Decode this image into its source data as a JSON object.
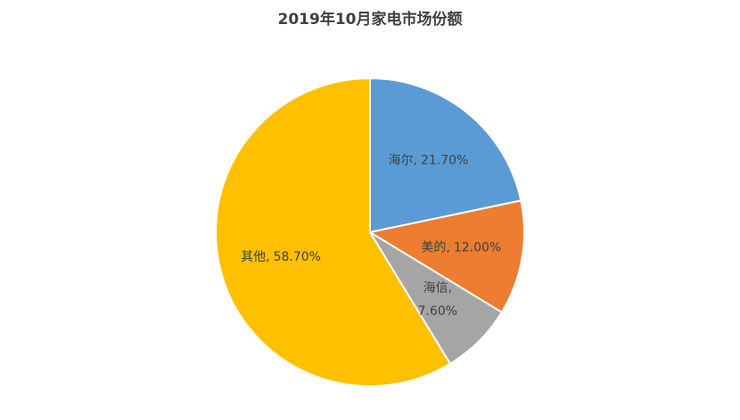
{
  "chart_data": {
    "type": "pie",
    "title": "2019年10月家电市场份额",
    "categories": [
      "海尔,",
      "美的,",
      "海信,",
      "其他,"
    ],
    "values": [
      21.7,
      12.0,
      7.6,
      58.7
    ],
    "value_labels": [
      "21.70%",
      "12.00%",
      "7.60%",
      "58.70%"
    ],
    "colors": [
      "#5b9bd5",
      "#ed7d31",
      "#a5a5a5",
      "#ffc000"
    ]
  }
}
